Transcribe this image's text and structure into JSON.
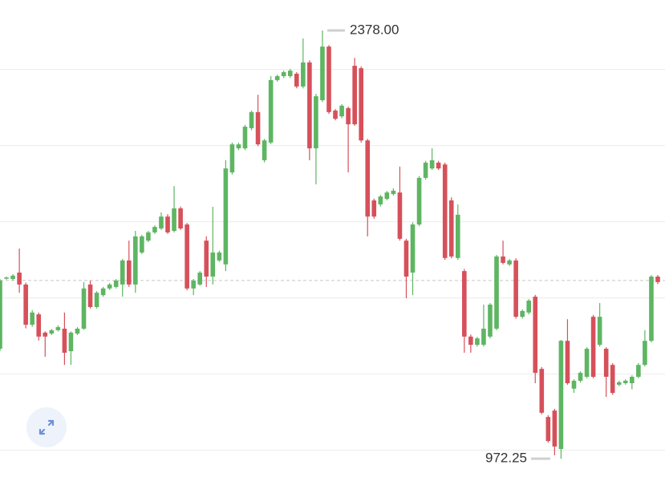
{
  "chart_data": {
    "type": "candlestick",
    "ylim": [
      912,
      2478
    ],
    "yticks": [
      1000,
      1250,
      1500,
      1750,
      2000,
      2250
    ],
    "grid": true,
    "up_color": "#5eb562",
    "down_color": "#d6505a",
    "open": [
      1333,
      1565,
      1562,
      1583,
      1544,
      1412,
      1446,
      1386,
      1383,
      1394,
      1399,
      1325,
      1383,
      1399,
      1544,
      1470,
      1509,
      1531,
      1536,
      1544,
      1623,
      1544,
      1649,
      1688,
      1715,
      1728,
      1767,
      1720,
      1794,
      1741,
      1531,
      1544,
      1688,
      1570,
      1623,
      1610,
      1912,
      1991,
      1991,
      2057,
      2110,
      1952,
      2010,
      2215,
      2228,
      2228,
      2236,
      2194,
      2273,
      1991,
      2149,
      2325,
      2115,
      2096,
      2123,
      2262,
      2254,
      2017,
      1820,
      1807,
      1825,
      1841,
      1846,
      1688,
      1583,
      1741,
      1894,
      1925,
      1944,
      1938,
      1820,
      1631,
      1588,
      1373,
      1346,
      1346,
      1373,
      1399,
      1636,
      1610,
      1623,
      1438,
      1452,
      1504,
      1267,
      1109,
      1130,
      1004,
      1359,
      1202,
      1228,
      1241,
      1438,
      1346,
      1333,
      1280,
      1215,
      1220,
      1220,
      1241,
      1280,
      1359,
      1570
    ],
    "high": [
      1562,
      1570,
      1578,
      1662,
      1550,
      1460,
      1452,
      1390,
      1398,
      1410,
      1452,
      1390,
      1404,
      1552,
      1557,
      1522,
      1536,
      1549,
      1562,
      1628,
      1688,
      1720,
      1707,
      1720,
      1738,
      1781,
      1775,
      1867,
      1800,
      1746,
      1562,
      1588,
      1702,
      1799,
      1655,
      1952,
      2010,
      2010,
      2068,
      2115,
      2167,
      2022,
      2228,
      2233,
      2246,
      2252,
      2241,
      2352,
      2280,
      2170,
      2378,
      2330,
      2120,
      2136,
      2128,
      2288,
      2260,
      2022,
      1826,
      1838,
      1851,
      1860,
      1931,
      1694,
      1748,
      1900,
      1950,
      1991,
      1950,
      1944,
      1830,
      1807,
      1595,
      1380,
      1372,
      1478,
      1483,
      1641,
      1688,
      1628,
      1630,
      1462,
      1496,
      1510,
      1273,
      1115,
      1136,
      1362,
      1430,
      1233,
      1259,
      1338,
      1444,
      1483,
      1338,
      1286,
      1228,
      1233,
      1246,
      1286,
      1394,
      1575,
      1575
    ],
    "low": [
      1325,
      1560,
      1557,
      1517,
      1400,
      1405,
      1360,
      1307,
      1378,
      1390,
      1280,
      1280,
      1378,
      1395,
      1465,
      1465,
      1504,
      1526,
      1531,
      1504,
      1536,
      1517,
      1644,
      1683,
      1710,
      1723,
      1710,
      1715,
      1723,
      1525,
      1509,
      1540,
      1536,
      1544,
      1618,
      1588,
      1905,
      1985,
      1985,
      2050,
      1998,
      1945,
      2005,
      2210,
      2222,
      2222,
      2188,
      2188,
      1952,
      1873,
      2143,
      2104,
      2083,
      2090,
      1912,
      2065,
      2010,
      1702,
      1760,
      1800,
      1820,
      1836,
      1688,
      1499,
      1509,
      1735,
      1888,
      1920,
      1920,
      1625,
      1630,
      1625,
      1320,
      1320,
      1340,
      1340,
      1367,
      1394,
      1610,
      1605,
      1432,
      1432,
      1446,
      1220,
      1118,
      1025,
      983,
      972,
      1215,
      1188,
      1222,
      1236,
      1236,
      1340,
      1175,
      1182,
      1210,
      1215,
      1200,
      1236,
      1275,
      1354,
      1545
    ],
    "close": [
      1557,
      1567,
      1573,
      1544,
      1412,
      1452,
      1373,
      1373,
      1394,
      1404,
      1320,
      1386,
      1399,
      1531,
      1470,
      1517,
      1531,
      1544,
      1557,
      1623,
      1544,
      1702,
      1702,
      1715,
      1733,
      1767,
      1715,
      1794,
      1728,
      1531,
      1557,
      1583,
      1570,
      1649,
      1649,
      1925,
      2004,
      2004,
      2062,
      2110,
      2004,
      2017,
      2215,
      2228,
      2241,
      2246,
      2194,
      2273,
      1991,
      2162,
      2325,
      2110,
      2088,
      2131,
      2070,
      2070,
      2017,
      1767,
      1767,
      1833,
      1846,
      1852,
      1694,
      1570,
      1741,
      1894,
      1944,
      1952,
      1925,
      1631,
      1636,
      1773,
      1373,
      1346,
      1367,
      1399,
      1478,
      1636,
      1615,
      1623,
      1438,
      1457,
      1491,
      1254,
      1123,
      1030,
      1012,
      1359,
      1220,
      1228,
      1254,
      1333,
      1241,
      1438,
      1241,
      1188,
      1223,
      1228,
      1241,
      1280,
      1359,
      1570,
      1552
    ],
    "price_line": 1557,
    "max_label": {
      "value": 2378,
      "label": "2378.00"
    },
    "min_label": {
      "value": 972.25,
      "label": "972.25"
    }
  }
}
